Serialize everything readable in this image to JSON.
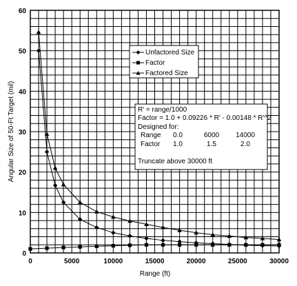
{
  "chart_data": {
    "type": "line",
    "xlabel": "Range (ft)",
    "ylabel": "Angular Size of 50-Ft Target (mil)",
    "xlim": [
      0,
      30000
    ],
    "ylim": [
      0,
      60
    ],
    "x_ticks": [
      0,
      5000,
      10000,
      15000,
      20000,
      25000,
      30000
    ],
    "y_ticks": [
      0,
      10,
      20,
      30,
      40,
      50,
      60
    ],
    "x_tick_labels": [
      "0",
      "5000",
      "10000",
      "15000",
      "20000",
      "25000",
      "30000"
    ],
    "y_tick_labels": [
      "0",
      "10",
      "20",
      "30",
      "40",
      "50",
      "60"
    ],
    "grid": true,
    "legend_position": "upper-middle",
    "series": [
      {
        "name": "Unfactored Size",
        "marker": "diamond",
        "x": [
          1000,
          2000,
          3000,
          4000,
          6000,
          8000,
          10000,
          12000,
          14000,
          16000,
          18000,
          20000,
          22000,
          24000,
          26000,
          28000,
          30000
        ],
        "y": [
          50.0,
          25.0,
          16.7,
          12.5,
          8.3,
          6.3,
          5.0,
          4.2,
          3.6,
          3.1,
          2.8,
          2.5,
          2.3,
          2.1,
          1.9,
          1.8,
          1.7
        ]
      },
      {
        "name": "Factor",
        "marker": "square",
        "x": [
          0,
          2000,
          4000,
          6000,
          8000,
          10000,
          12000,
          14000,
          16000,
          18000,
          20000,
          22000,
          24000,
          26000,
          28000,
          30000
        ],
        "y": [
          1.0,
          1.18,
          1.35,
          1.5,
          1.64,
          1.77,
          1.89,
          2.0,
          2.0,
          2.0,
          2.0,
          2.0,
          2.0,
          2.0,
          2.0,
          2.0
        ]
      },
      {
        "name": "Factored Size",
        "marker": "triangle",
        "x": [
          1000,
          2000,
          3000,
          4000,
          6000,
          8000,
          10000,
          12000,
          14000,
          16000,
          18000,
          20000,
          22000,
          24000,
          26000,
          28000,
          30000
        ],
        "y": [
          54.6,
          29.4,
          21.0,
          16.9,
          12.5,
          10.2,
          8.9,
          7.9,
          7.1,
          6.3,
          5.6,
          5.0,
          4.5,
          4.2,
          3.8,
          3.6,
          3.3
        ]
      }
    ],
    "annotation": {
      "lines": [
        "R' = range/1000",
        "Factor = 1.0 + 0.09226 * R' - 0.00148 * R'^2",
        "Designed for:"
      ],
      "table": {
        "header": [
          "Range",
          "0.0",
          "6000",
          "14000"
        ],
        "row": [
          "Factor",
          "1.0",
          "1.5",
          "2.0"
        ]
      },
      "footer": "Truncate above 30000 ft"
    }
  }
}
